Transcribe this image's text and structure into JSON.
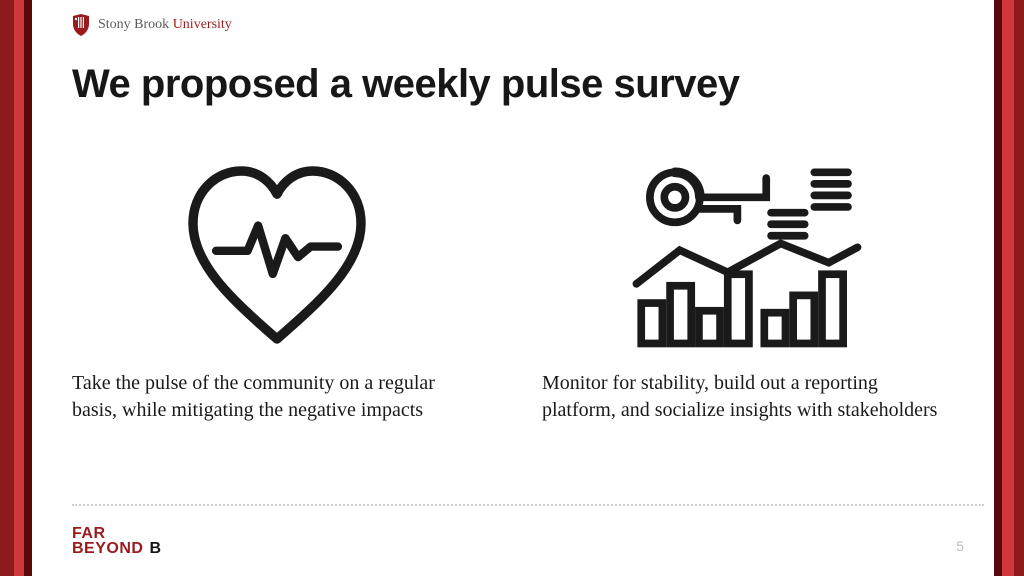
{
  "slide": {
    "logo": {
      "text_part1": "Stony Brook ",
      "text_part2": "University",
      "shield_color": "#9a1b1e"
    },
    "title": "We proposed a weekly pulse survey",
    "columns": [
      {
        "icon": "heart-pulse",
        "text": "Take the pulse of the community on a regular basis, while mitigating the negative impacts"
      },
      {
        "icon": "analytics-dashboard",
        "text": "Monitor for stability, build out a reporting platform, and socialize insights  with stakeholders"
      }
    ],
    "footer": {
      "line1": "FAR",
      "line2": "BEYOND",
      "suffix": "B",
      "color": "#9a1b1e"
    },
    "page_number": "5",
    "side_stripes": {
      "left": [
        {
          "x": 0,
          "w": 14,
          "color": "#8d1a1d"
        },
        {
          "x": 14,
          "w": 10,
          "color": "#d0373c"
        },
        {
          "x": 24,
          "w": 8,
          "color": "#58090b"
        }
      ],
      "right": [
        {
          "x": 0,
          "w": 10,
          "color": "#8d1a1d"
        },
        {
          "x": 10,
          "w": 12,
          "color": "#d0373c"
        },
        {
          "x": 22,
          "w": 8,
          "color": "#58090b"
        }
      ],
      "right_width": 30,
      "left_width": 32
    },
    "icon_stroke": "#1a1a1a"
  }
}
